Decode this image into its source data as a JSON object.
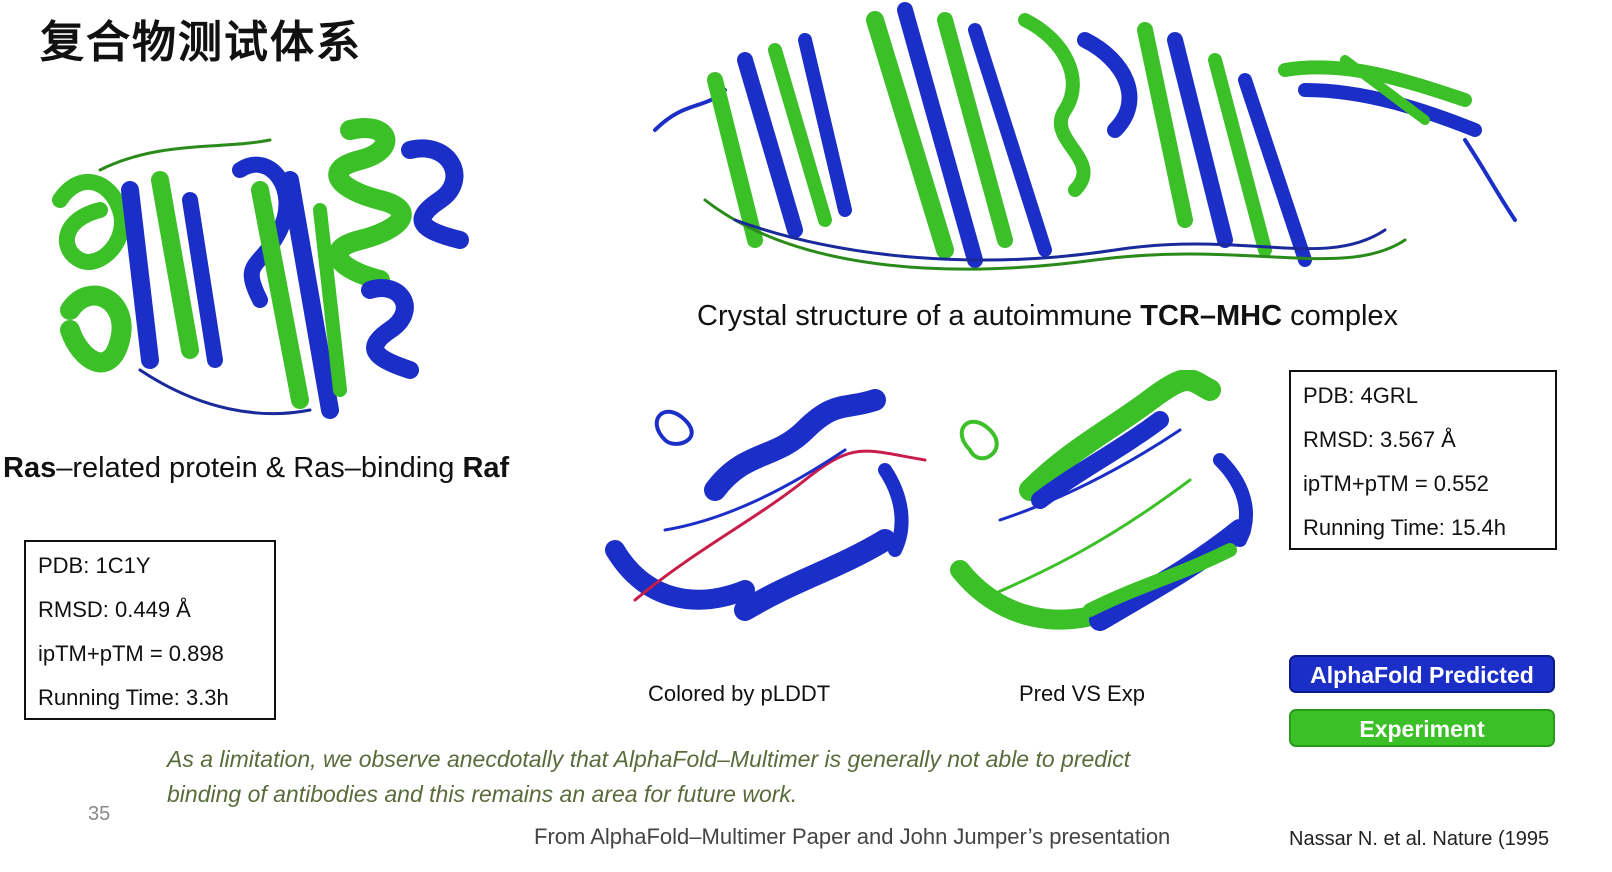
{
  "slide": {
    "title": "复合物测试体系",
    "page_number": "35"
  },
  "left_structure": {
    "caption_part1": "Ras",
    "caption_part2": "–related protein & Ras–binding ",
    "caption_part3": "Raf",
    "info": {
      "pdb": "PDB: 1C1Y",
      "rmsd": "RMSD: 0.449 Å",
      "iptm": "ipTM+pTM = 0.898",
      "runtime": "Running Time: 3.3h"
    }
  },
  "right_structure": {
    "caption_part1": "Crystal structure of a autoimmune ",
    "caption_part2": "TCR–MHC",
    "caption_part3": " complex",
    "sub_left": "Colored by pLDDT",
    "sub_right": "Pred VS Exp",
    "info": {
      "pdb": "PDB: 4GRL",
      "rmsd": "RMSD: 3.567 Å",
      "iptm": "ipTM+pTM = 0.552",
      "runtime": "Running Time: 15.4h"
    }
  },
  "legend": {
    "predicted": "AlphaFold Predicted",
    "experiment": "Experiment",
    "predicted_color": "#1b2fc8",
    "experiment_color": "#3cc028"
  },
  "quote": {
    "line1": "As a limitation, we observe anecdotally that AlphaFold–Multimer is generally not able to predict",
    "line2": "binding of antibodies and this remains an area for future work."
  },
  "footer": {
    "source": "From AlphaFold–Multimer Paper and John Jumper’s presentation",
    "reference": "Nassar N. et al. Nature (1995"
  }
}
